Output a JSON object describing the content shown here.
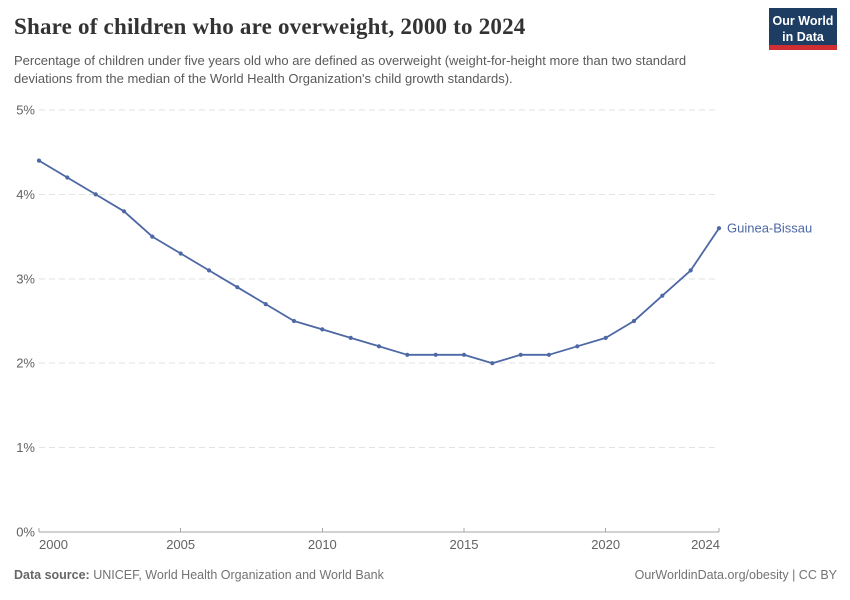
{
  "header": {
    "title": "Share of children who are overweight, 2000 to 2024",
    "subtitle": "Percentage of children under five years old who are defined as overweight (weight-for-height more than two standard deviations from the median of the World Health Organization's child growth standards).",
    "logo": {
      "line1": "Our World",
      "line2": "in Data"
    }
  },
  "chart_data": {
    "type": "line",
    "title": "Share of children who are overweight, 2000 to 2024",
    "x": [
      2000,
      2001,
      2002,
      2003,
      2004,
      2005,
      2006,
      2007,
      2008,
      2009,
      2010,
      2011,
      2012,
      2013,
      2014,
      2015,
      2016,
      2017,
      2018,
      2019,
      2020,
      2021,
      2022,
      2023,
      2024
    ],
    "series": [
      {
        "name": "Guinea-Bissau",
        "color": "#4d68a5",
        "values": [
          4.4,
          4.2,
          4.0,
          3.8,
          3.5,
          3.3,
          3.1,
          2.9,
          2.7,
          2.5,
          2.4,
          2.3,
          2.2,
          2.1,
          2.1,
          2.1,
          2.0,
          2.1,
          2.1,
          2.2,
          2.3,
          2.5,
          2.8,
          3.1,
          3.6
        ]
      }
    ],
    "xlabel": "",
    "ylabel": "",
    "ylim": [
      0,
      5
    ],
    "yticks": [
      0,
      1,
      2,
      3,
      4,
      5
    ],
    "ytick_format": "{v}%",
    "xticks": [
      2000,
      2005,
      2010,
      2015,
      2020,
      2024
    ],
    "grid": "horizontal-dashed",
    "legend_position": "end-of-line-label"
  },
  "footer": {
    "datasource_label": "Data source:",
    "datasource_text": " UNICEF, World Health Organization and World Bank",
    "attribution": "OurWorldinData.org/obesity | CC BY"
  },
  "colors": {
    "series_blue": "#4d68a5",
    "logo_navy": "#1d3d63",
    "logo_red": "#cf2f33",
    "gridline": "#e2e2e2",
    "axis": "#a5a5a5"
  }
}
